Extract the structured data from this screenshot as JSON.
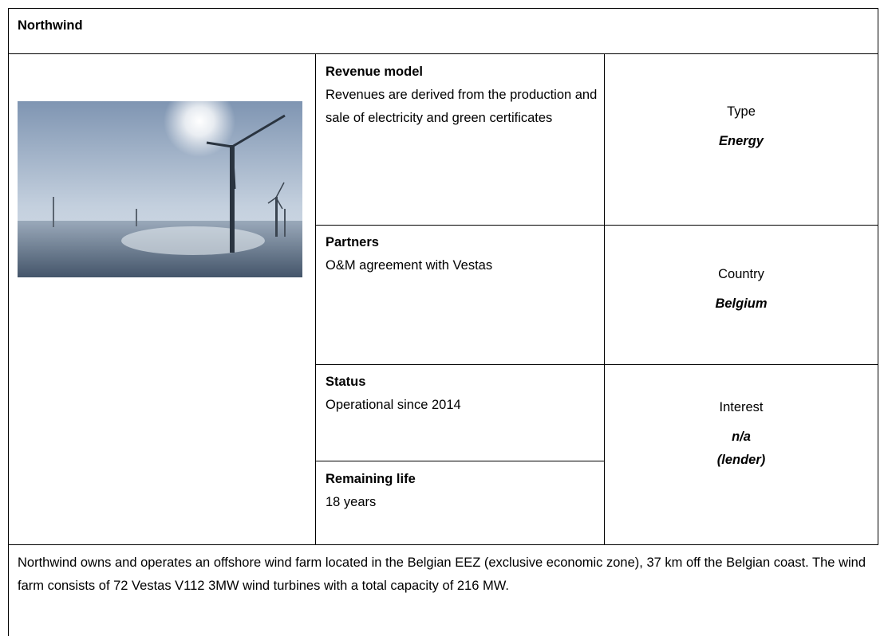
{
  "header": {
    "title": "Northwind"
  },
  "sections": [
    {
      "label": "Revenue model",
      "text": "Revenues are derived from the production and sale of electricity and green certificates"
    },
    {
      "label": "Partners",
      "text": "O&M agreement with Vestas"
    },
    {
      "label": "Status",
      "text": "Operational since 2014"
    },
    {
      "label": "Remaining life",
      "text": "18 years"
    }
  ],
  "facts": [
    {
      "label": "Type",
      "value_lines": [
        "Energy"
      ]
    },
    {
      "label": "Country",
      "value_lines": [
        "Belgium"
      ]
    },
    {
      "label": "Interest",
      "value_lines": [
        "n/a",
        "(lender)"
      ]
    }
  ],
  "description": "Northwind owns and operates an offshore wind farm located in the Belgian EEZ (exclusive economic zone), 37 km off the Belgian coast. The wind farm consists of 72 Vestas V112 3MW wind turbines with a total capacity of 216 MW."
}
